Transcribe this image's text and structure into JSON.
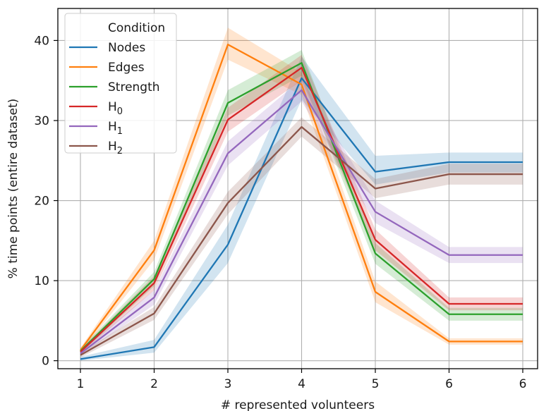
{
  "chart_data": {
    "type": "line",
    "xlabel": "# represented volunteers",
    "ylabel": "% time points (entire dataset)",
    "ylim": [
      -1,
      44
    ],
    "grid": true,
    "x_tick_labels": [
      "1",
      "2",
      "3",
      "4",
      "5",
      "6",
      "6"
    ],
    "y_ticks": [
      0,
      10,
      20,
      30,
      40
    ],
    "legend": {
      "title": "Condition",
      "placement": "top-left"
    },
    "series": [
      {
        "name": "Nodes",
        "name_base": "Nodes",
        "name_sub": "",
        "color": "#1f77b4",
        "values": [
          0.2,
          1.7,
          14.5,
          35.3,
          23.6,
          24.8,
          24.8
        ],
        "lower": [
          0.0,
          1.0,
          12.2,
          32.6,
          22.0,
          23.5,
          23.5
        ],
        "upper": [
          0.5,
          2.6,
          17.0,
          38.0,
          25.6,
          26.0,
          26.0
        ]
      },
      {
        "name": "Edges",
        "name_base": "Edges",
        "name_sub": "",
        "color": "#ff7f0e",
        "values": [
          1.3,
          13.8,
          39.5,
          34.5,
          8.6,
          2.4,
          2.4
        ],
        "lower": [
          1.0,
          12.6,
          37.6,
          33.2,
          7.3,
          2.0,
          2.0
        ],
        "upper": [
          1.6,
          15.0,
          41.6,
          36.0,
          9.9,
          2.8,
          2.8
        ]
      },
      {
        "name": "Strength",
        "name_base": "Strength",
        "name_sub": "",
        "color": "#2ca02c",
        "values": [
          1.2,
          10.2,
          32.2,
          37.2,
          13.4,
          5.8,
          5.8
        ],
        "lower": [
          0.9,
          9.3,
          30.6,
          35.6,
          12.1,
          5.0,
          5.0
        ],
        "upper": [
          1.5,
          11.1,
          33.8,
          38.8,
          14.7,
          6.6,
          6.6
        ]
      },
      {
        "name": "H0",
        "name_base": "H",
        "name_sub": "0",
        "color": "#d62728",
        "values": [
          1.1,
          9.7,
          30.1,
          36.6,
          15.1,
          7.1,
          7.1
        ],
        "lower": [
          0.8,
          8.8,
          28.6,
          35.0,
          13.8,
          6.3,
          6.3
        ],
        "upper": [
          1.4,
          10.6,
          31.6,
          38.2,
          16.4,
          7.9,
          7.9
        ]
      },
      {
        "name": "H1",
        "name_base": "H",
        "name_sub": "1",
        "color": "#9467bd",
        "values": [
          0.9,
          7.9,
          25.9,
          33.8,
          18.6,
          13.2,
          13.2
        ],
        "lower": [
          0.6,
          7.0,
          24.4,
          32.4,
          17.2,
          12.2,
          12.2
        ],
        "upper": [
          1.2,
          8.8,
          27.4,
          35.2,
          20.0,
          14.2,
          14.2
        ]
      },
      {
        "name": "H2",
        "name_base": "H",
        "name_sub": "2",
        "color": "#8c564b",
        "values": [
          0.7,
          5.9,
          19.7,
          29.2,
          21.5,
          23.3,
          23.3
        ],
        "lower": [
          0.4,
          5.1,
          18.3,
          28.0,
          20.3,
          22.0,
          22.0
        ],
        "upper": [
          1.0,
          6.7,
          21.1,
          30.4,
          22.7,
          24.6,
          24.6
        ]
      }
    ]
  }
}
